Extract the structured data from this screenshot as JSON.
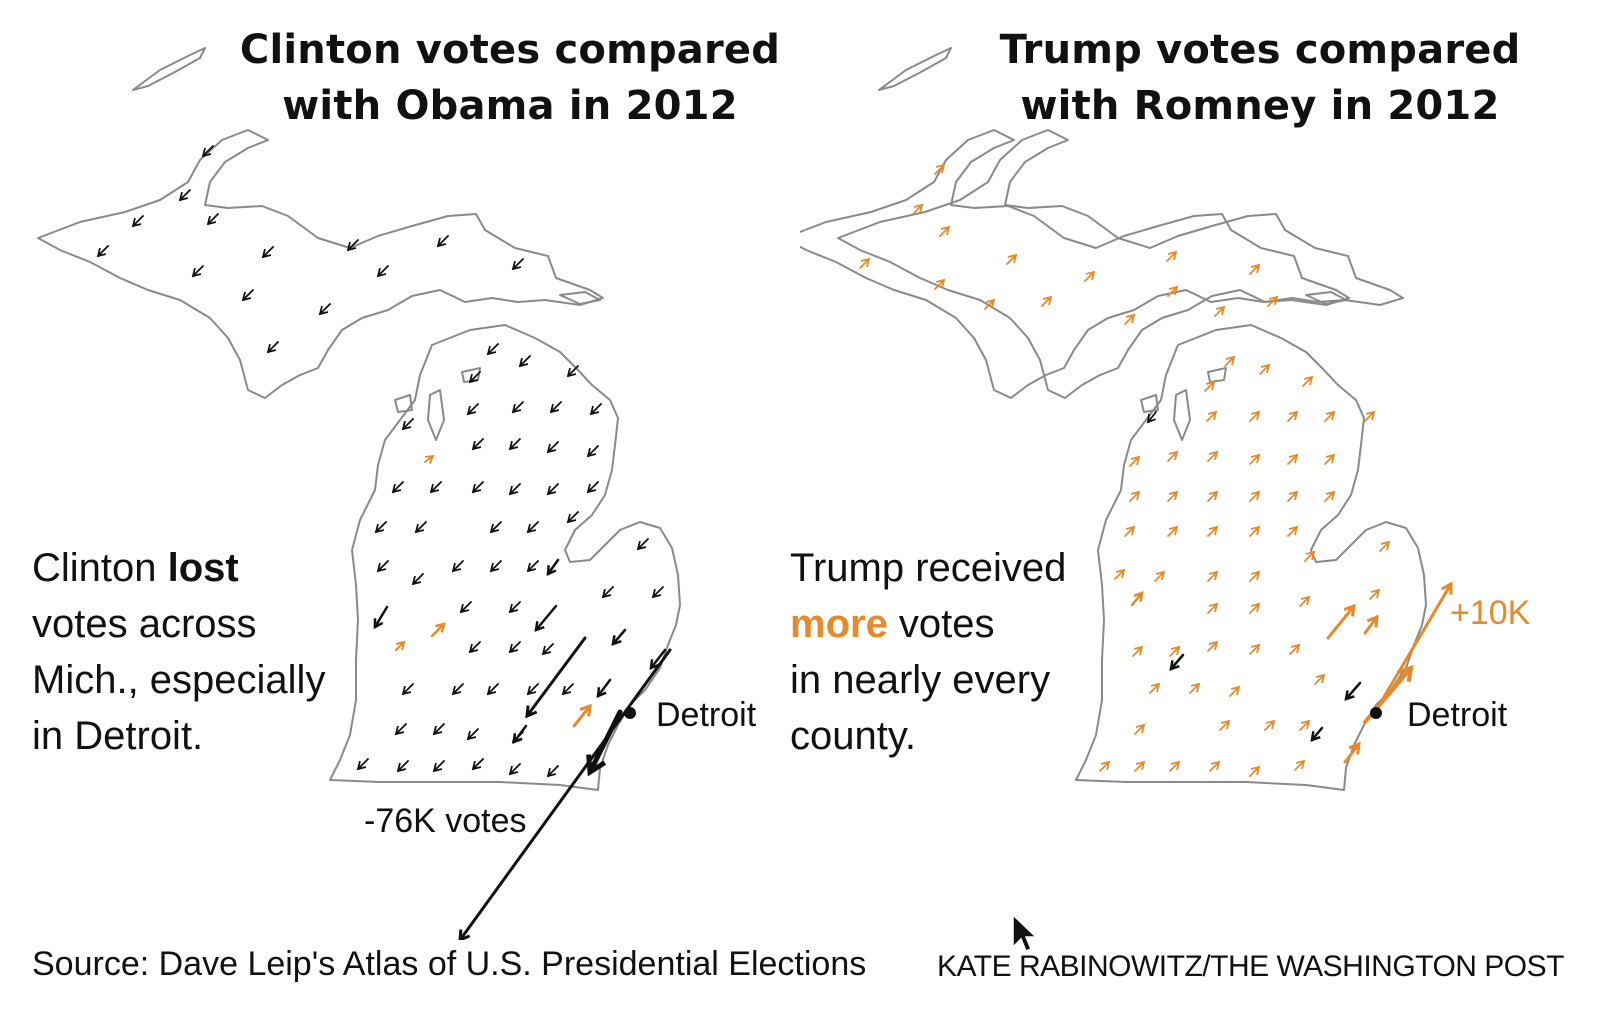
{
  "left_panel": {
    "title_line1": "Clinton votes compared",
    "title_line2": "with Obama in 2012",
    "annotation": {
      "line1_prefix": "Clinton ",
      "line1_emphasis": "lost",
      "line2": "votes across",
      "line3": "Mich., especially",
      "line4": "in Detroit."
    },
    "city_label": "Detroit",
    "largest_change_label": "-76K votes"
  },
  "right_panel": {
    "title_line1": "Trump votes compared",
    "title_line2": "with Romney in 2012",
    "annotation": {
      "line1": "Trump received",
      "line2_emphasis": "more",
      "line2_rest": " votes",
      "line3": "in nearly every",
      "line4": "county."
    },
    "city_label": "Detroit",
    "largest_change_label": "+10K"
  },
  "footer": {
    "source": "Source: Dave Leip's Atlas of U.S. Presidential Elections",
    "credit": "KATE RABINOWITZ/THE WASHINGTON POST"
  },
  "colors": {
    "gain": "#e8892a",
    "loss": "#111111",
    "outline": "#8a8a8a"
  },
  "icons": {
    "cursor": "mouse-pointer-icon",
    "city_marker": "city-dot-icon",
    "county_change": "arrow-icon"
  }
}
